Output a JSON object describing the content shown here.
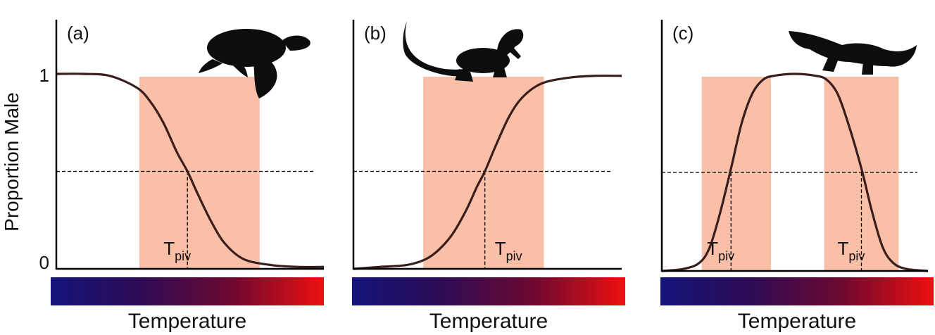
{
  "chart_data": [
    {
      "type": "line",
      "panel_label": "(a)",
      "pattern": "male-to-female",
      "animal_icon": "turtle-icon",
      "ylabel": "Proportion Male",
      "xlabel": "Temperature",
      "y_ticks": [
        "0",
        "1"
      ],
      "ylim": [
        0,
        1
      ],
      "xlim": [
        0,
        1
      ],
      "pivotal_label": "T",
      "pivotal_sub": "piv",
      "pivotal_x": [
        0.49
      ],
      "tra_ranges": [
        [
          0.31,
          0.76
        ]
      ],
      "curve": {
        "x": [
          0.0,
          0.1,
          0.2,
          0.3,
          0.35,
          0.4,
          0.45,
          0.49,
          0.53,
          0.58,
          0.63,
          0.7,
          0.8,
          0.9,
          1.0
        ],
        "y": [
          1.0,
          1.0,
          0.99,
          0.93,
          0.86,
          0.75,
          0.6,
          0.5,
          0.38,
          0.24,
          0.13,
          0.05,
          0.02,
          0.01,
          0.01
        ]
      },
      "threshold_y": 0.5,
      "colorbar": {
        "colors": [
          "#14147a",
          "#2e0c55",
          "#6e0830",
          "#ee1010"
        ]
      }
    },
    {
      "type": "line",
      "panel_label": "(b)",
      "pattern": "female-to-male",
      "animal_icon": "lizard-icon",
      "xlabel": "Temperature",
      "ylim": [
        0,
        1
      ],
      "xlim": [
        0,
        1
      ],
      "pivotal_label": "T",
      "pivotal_sub": "piv",
      "pivotal_x": [
        0.49
      ],
      "tra_ranges": [
        [
          0.26,
          0.71
        ]
      ],
      "curve": {
        "x": [
          0.0,
          0.1,
          0.2,
          0.27,
          0.32,
          0.37,
          0.42,
          0.46,
          0.49,
          0.53,
          0.58,
          0.63,
          0.7,
          0.8,
          0.9,
          1.0
        ],
        "y": [
          0.0,
          0.01,
          0.02,
          0.05,
          0.1,
          0.18,
          0.3,
          0.42,
          0.5,
          0.63,
          0.78,
          0.88,
          0.95,
          0.98,
          0.99,
          0.99
        ]
      },
      "threshold_y": 0.5,
      "colorbar": {
        "colors": [
          "#14147a",
          "#2e0c55",
          "#6e0830",
          "#ee1010"
        ]
      }
    },
    {
      "type": "line",
      "panel_label": "(c)",
      "pattern": "female-male-female",
      "animal_icon": "crocodile-icon",
      "xlabel": "Temperature",
      "ylim": [
        0,
        1
      ],
      "xlim": [
        0,
        1
      ],
      "pivotal_label": "T",
      "pivotal_sub": "piv",
      "pivotal_x": [
        0.26,
        0.75
      ],
      "tra_ranges": [
        [
          0.15,
          0.41
        ],
        [
          0.61,
          0.89
        ]
      ],
      "curve": {
        "x": [
          0.0,
          0.08,
          0.14,
          0.18,
          0.22,
          0.26,
          0.3,
          0.34,
          0.38,
          0.42,
          0.5,
          0.58,
          0.62,
          0.66,
          0.7,
          0.75,
          0.79,
          0.83,
          0.87,
          0.92,
          1.0
        ],
        "y": [
          0.0,
          0.01,
          0.04,
          0.12,
          0.3,
          0.52,
          0.75,
          0.9,
          0.97,
          0.99,
          1.0,
          0.99,
          0.97,
          0.9,
          0.75,
          0.52,
          0.3,
          0.12,
          0.04,
          0.01,
          0.0
        ]
      },
      "threshold_y": 0.5,
      "colorbar": {
        "colors": [
          "#14147a",
          "#2e0c55",
          "#6e0830",
          "#ee1010"
        ]
      }
    }
  ],
  "colors": {
    "tra_fill": "#f9bfa7",
    "curve": "#3a1e1e",
    "axis": "#000000",
    "silhouette": "#0d0d0d"
  }
}
